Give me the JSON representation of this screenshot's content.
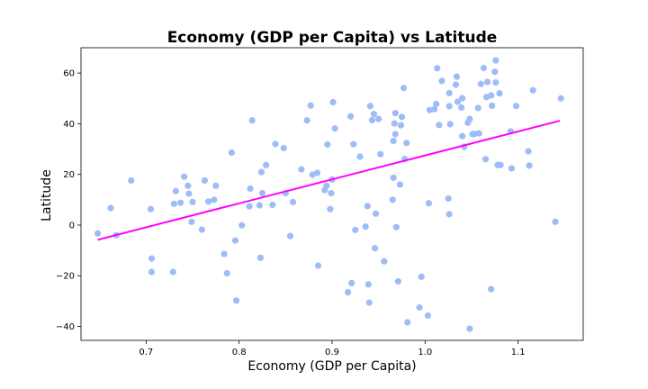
{
  "chart_data": {
    "type": "scatter",
    "title": "Economy (GDP per Capita) vs Latitude",
    "xlabel": "Economy (GDP per Capita)",
    "ylabel": "Latitude",
    "xlim": [
      0.63,
      1.17
    ],
    "ylim": [
      -45.5,
      70
    ],
    "xticks": [
      0.7,
      0.8,
      0.9,
      1.0,
      1.1
    ],
    "xtick_labels": [
      "0.7",
      "0.8",
      "0.9",
      "1.0",
      "1.1"
    ],
    "yticks": [
      -40,
      -20,
      0,
      20,
      40,
      60
    ],
    "ytick_labels": [
      "−40",
      "−20",
      "0",
      "20",
      "40",
      "60"
    ],
    "grid": false,
    "colors": {
      "points": "#9ebcf7",
      "regression": "#ff00ff"
    },
    "regression_line": {
      "x": [
        0.648,
        1.145
      ],
      "y": [
        -5.8,
        41.2
      ]
    },
    "points": [
      [
        0.648,
        -3.3
      ],
      [
        0.662,
        6.7
      ],
      [
        0.668,
        -4.0
      ],
      [
        0.684,
        17.6
      ],
      [
        0.705,
        6.3
      ],
      [
        0.706,
        -13.2
      ],
      [
        0.706,
        -18.5
      ],
      [
        0.729,
        -18.5
      ],
      [
        0.73,
        8.4
      ],
      [
        0.732,
        13.4
      ],
      [
        0.737,
        8.8
      ],
      [
        0.741,
        19.1
      ],
      [
        0.745,
        15.5
      ],
      [
        0.746,
        12.4
      ],
      [
        0.749,
        1.3
      ],
      [
        0.75,
        9.1
      ],
      [
        0.76,
        -1.8
      ],
      [
        0.763,
        17.6
      ],
      [
        0.767,
        9.3
      ],
      [
        0.773,
        10.0
      ],
      [
        0.775,
        15.5
      ],
      [
        0.784,
        -11.4
      ],
      [
        0.787,
        -19.0
      ],
      [
        0.792,
        28.6
      ],
      [
        0.796,
        -6.1
      ],
      [
        0.797,
        -29.8
      ],
      [
        0.803,
        -0.1
      ],
      [
        0.811,
        7.4
      ],
      [
        0.812,
        14.4
      ],
      [
        0.814,
        41.3
      ],
      [
        0.822,
        7.8
      ],
      [
        0.823,
        -12.9
      ],
      [
        0.824,
        20.9
      ],
      [
        0.825,
        12.6
      ],
      [
        0.829,
        23.7
      ],
      [
        0.836,
        8.0
      ],
      [
        0.839,
        32.0
      ],
      [
        0.848,
        30.4
      ],
      [
        0.85,
        12.6
      ],
      [
        0.855,
        -4.3
      ],
      [
        0.858,
        9.1
      ],
      [
        0.867,
        22.0
      ],
      [
        0.873,
        41.3
      ],
      [
        0.877,
        47.2
      ],
      [
        0.879,
        19.9
      ],
      [
        0.884,
        20.6
      ],
      [
        0.885,
        -16.0
      ],
      [
        0.892,
        13.8
      ],
      [
        0.894,
        15.5
      ],
      [
        0.895,
        31.8
      ],
      [
        0.898,
        6.3
      ],
      [
        0.899,
        12.6
      ],
      [
        0.9,
        18.0
      ],
      [
        0.901,
        48.5
      ],
      [
        0.903,
        38.1
      ],
      [
        0.917,
        -26.5
      ],
      [
        0.92,
        42.9
      ],
      [
        0.921,
        -22.9
      ],
      [
        0.923,
        31.9
      ],
      [
        0.925,
        -1.9
      ],
      [
        0.93,
        27.0
      ],
      [
        0.936,
        -0.6
      ],
      [
        0.938,
        7.5
      ],
      [
        0.939,
        -23.4
      ],
      [
        0.94,
        -30.6
      ],
      [
        0.941,
        47.0
      ],
      [
        0.943,
        41.4
      ],
      [
        0.945,
        43.8
      ],
      [
        0.946,
        -9.1
      ],
      [
        0.947,
        4.5
      ],
      [
        0.95,
        41.9
      ],
      [
        0.952,
        28.0
      ],
      [
        0.956,
        -14.3
      ],
      [
        0.965,
        10.0
      ],
      [
        0.966,
        33.2
      ],
      [
        0.966,
        18.7
      ],
      [
        0.967,
        40.1
      ],
      [
        0.968,
        44.2
      ],
      [
        0.968,
        35.9
      ],
      [
        0.969,
        -0.8
      ],
      [
        0.971,
        -22.2
      ],
      [
        0.973,
        16.0
      ],
      [
        0.974,
        39.4
      ],
      [
        0.975,
        42.7
      ],
      [
        0.977,
        54.1
      ],
      [
        0.978,
        26.1
      ],
      [
        0.98,
        32.4
      ],
      [
        0.981,
        -38.4
      ],
      [
        0.994,
        -32.5
      ],
      [
        0.996,
        -20.4
      ],
      [
        1.003,
        -35.7
      ],
      [
        1.004,
        8.6
      ],
      [
        1.005,
        45.4
      ],
      [
        1.01,
        45.7
      ],
      [
        1.012,
        47.8
      ],
      [
        1.013,
        61.9
      ],
      [
        1.015,
        39.5
      ],
      [
        1.018,
        56.9
      ],
      [
        1.025,
        10.5
      ],
      [
        1.026,
        4.3
      ],
      [
        1.026,
        46.9
      ],
      [
        1.026,
        52.1
      ],
      [
        1.027,
        39.8
      ],
      [
        1.033,
        55.4
      ],
      [
        1.034,
        58.6
      ],
      [
        1.035,
        48.7
      ],
      [
        1.039,
        46.4
      ],
      [
        1.04,
        50.1
      ],
      [
        1.04,
        35.1
      ],
      [
        1.042,
        30.9
      ],
      [
        1.046,
        40.4
      ],
      [
        1.048,
        41.9
      ],
      [
        1.048,
        -40.9
      ],
      [
        1.051,
        35.9
      ],
      [
        1.053,
        36.0
      ],
      [
        1.057,
        46.2
      ],
      [
        1.058,
        36.2
      ],
      [
        1.06,
        55.7
      ],
      [
        1.063,
        62.0
      ],
      [
        1.065,
        26.0
      ],
      [
        1.066,
        50.5
      ],
      [
        1.067,
        56.5
      ],
      [
        1.071,
        -25.3
      ],
      [
        1.071,
        51.2
      ],
      [
        1.072,
        47.1
      ],
      [
        1.075,
        60.5
      ],
      [
        1.076,
        65.0
      ],
      [
        1.076,
        56.3
      ],
      [
        1.078,
        23.7
      ],
      [
        1.08,
        52.0
      ],
      [
        1.081,
        23.7
      ],
      [
        1.092,
        37.0
      ],
      [
        1.093,
        22.4
      ],
      [
        1.098,
        47.0
      ],
      [
        1.111,
        29.1
      ],
      [
        1.112,
        23.5
      ],
      [
        1.116,
        53.2
      ],
      [
        1.14,
        1.3
      ],
      [
        1.146,
        50.0
      ]
    ]
  }
}
